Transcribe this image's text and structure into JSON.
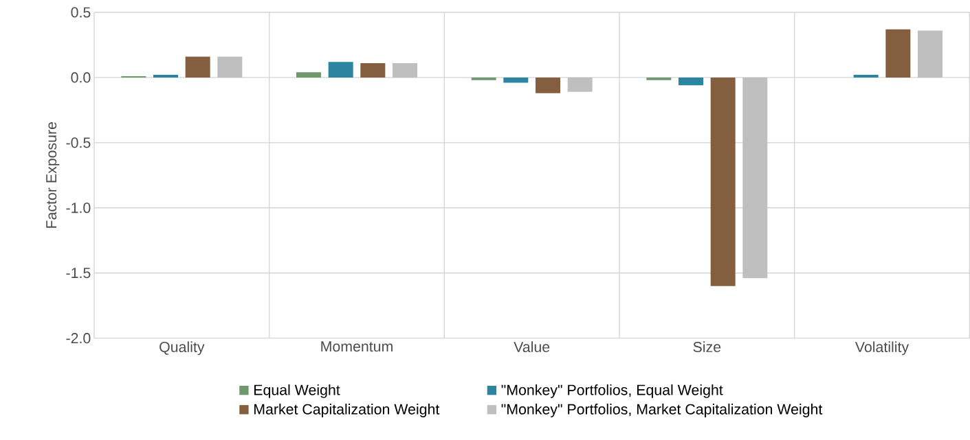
{
  "chart_data": {
    "type": "bar",
    "ylabel": "Factor Exposure",
    "categories": [
      "Quality",
      "Momentum",
      "Value",
      "Size",
      "Volatility"
    ],
    "series": [
      {
        "name": "Equal Weight",
        "color": "#70986e",
        "values": [
          0.01,
          0.04,
          -0.02,
          -0.02,
          0
        ]
      },
      {
        "name": "\"Monkey\" Portfolios, Equal Weight",
        "color": "#2b84a0",
        "values": [
          0.02,
          0.12,
          -0.04,
          -0.06,
          0.02
        ]
      },
      {
        "name": "Market Capitalization Weight",
        "color": "#845f3f",
        "values": [
          0.16,
          0.11,
          -0.12,
          -1.6,
          0.37
        ]
      },
      {
        "name": "\"Monkey\" Portfolios, Market Capitalization Weight",
        "color": "#bfbfbf",
        "values": [
          0.16,
          0.11,
          -0.11,
          -1.54,
          0.36
        ]
      }
    ],
    "ylim": [
      -2.0,
      0.5
    ],
    "yticks": [
      {
        "value": 0.5,
        "label": "0.5"
      },
      {
        "value": 0,
        "label": "0.0"
      },
      {
        "value": -0.5,
        "label": "-0.5"
      },
      {
        "value": -1.0,
        "label": "-1.0"
      },
      {
        "value": -1.5,
        "label": "-1.5"
      },
      {
        "value": -2.0,
        "label": "-2.0"
      }
    ],
    "grid": true,
    "legend": "bottom"
  }
}
